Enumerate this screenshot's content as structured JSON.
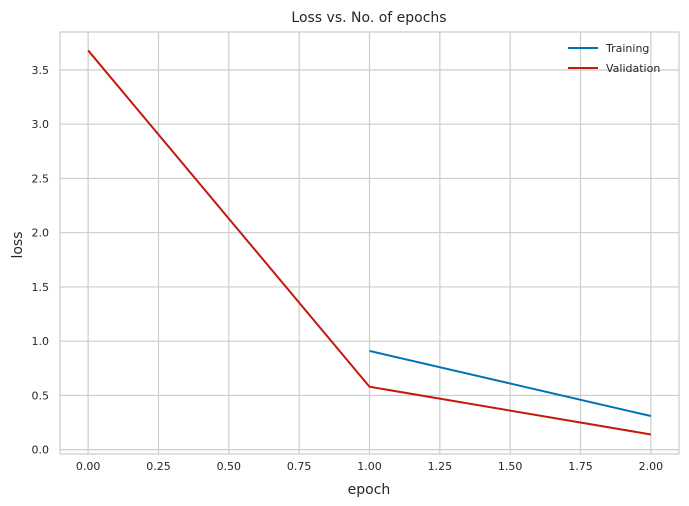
{
  "chart_data": {
    "type": "line",
    "title": "Loss vs. No. of epochs",
    "xlabel": "epoch",
    "ylabel": "loss",
    "xlim": [
      -0.1,
      2.1
    ],
    "ylim": [
      -0.04,
      3.85
    ],
    "xticks": [
      0.0,
      0.25,
      0.5,
      0.75,
      1.0,
      1.25,
      1.5,
      1.75,
      2.0
    ],
    "xtick_labels": [
      "0.00",
      "0.25",
      "0.50",
      "0.75",
      "1.00",
      "1.25",
      "1.50",
      "1.75",
      "2.00"
    ],
    "yticks": [
      0.0,
      0.5,
      1.0,
      1.5,
      2.0,
      2.5,
      3.0,
      3.5
    ],
    "ytick_labels": [
      "0.0",
      "0.5",
      "1.0",
      "1.5",
      "2.0",
      "2.5",
      "3.0",
      "3.5"
    ],
    "grid": true,
    "legend_position": "top-right",
    "series": [
      {
        "name": "Training",
        "color": "#0072b2",
        "x": [
          1,
          2
        ],
        "values": [
          0.91,
          0.31
        ]
      },
      {
        "name": "Validation",
        "color": "#c41a0b",
        "x": [
          0,
          1,
          2
        ],
        "values": [
          3.68,
          0.58,
          0.14
        ]
      }
    ]
  }
}
